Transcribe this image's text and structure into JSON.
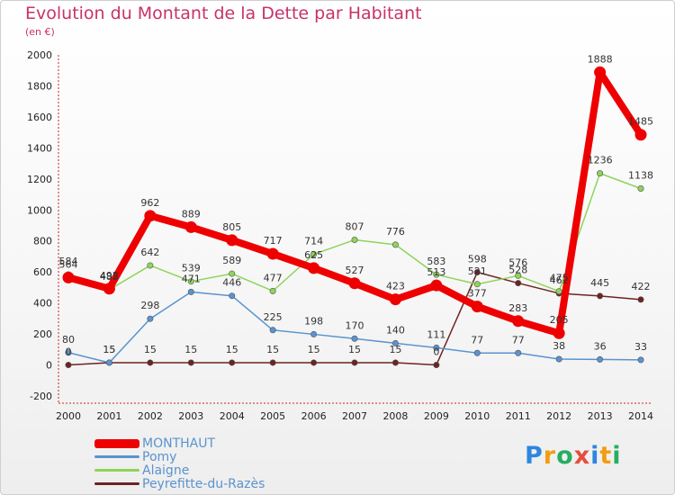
{
  "chart_data": {
    "type": "line",
    "title": "Evolution du Montant de la Dette par Habitant",
    "subtitle": "(en €)",
    "categories": [
      "2000",
      "2001",
      "2002",
      "2003",
      "2004",
      "2005",
      "2006",
      "2007",
      "2008",
      "2009",
      "2010",
      "2011",
      "2012",
      "2013",
      "2014"
    ],
    "ylim": [
      -200,
      2000
    ],
    "yticks": [
      -200,
      0,
      200,
      400,
      600,
      800,
      1000,
      1200,
      1400,
      1600,
      1800,
      2000
    ],
    "grid": false,
    "legend_position": "bottom-left",
    "series": [
      {
        "name": "MONTHAUT",
        "color": "#ee0000",
        "values": [
          564,
          492,
          962,
          889,
          805,
          717,
          625,
          527,
          423,
          513,
          377,
          283,
          205,
          1888,
          1485
        ],
        "labels": [
          "564",
          "492",
          "962",
          "889",
          "805",
          "717",
          "625",
          "527",
          "423",
          "513",
          "377",
          "283",
          "205",
          "1888",
          "1485"
        ]
      },
      {
        "name": "Pomy",
        "color": "#5a93cf",
        "values": [
          80,
          15,
          298,
          471,
          446,
          225,
          198,
          170,
          140,
          111,
          77,
          77,
          38,
          36,
          33
        ],
        "labels": [
          "80",
          "15",
          "298",
          "471",
          "446",
          "225",
          "198",
          "170",
          "140",
          "111",
          "77",
          "77",
          "38",
          "36",
          "33"
        ]
      },
      {
        "name": "Alaigne",
        "color": "#8ed45a",
        "values": [
          584,
          485,
          642,
          539,
          589,
          477,
          714,
          807,
          776,
          583,
          521,
          576,
          475,
          1236,
          1138
        ],
        "labels": [
          "584",
          "485",
          "642",
          "539",
          "589",
          "477",
          "714",
          "807",
          "776",
          "583",
          "521",
          "576",
          "475",
          "1236",
          "1138"
        ]
      },
      {
        "name": "Peyrefitte-du-Razès",
        "color": "#6e2323",
        "values": [
          0,
          15,
          15,
          15,
          15,
          15,
          15,
          15,
          15,
          0,
          598,
          528,
          462,
          445,
          422
        ],
        "labels": [
          "0",
          "15",
          "15",
          "15",
          "15",
          "15",
          "15",
          "15",
          "15",
          "0",
          "598",
          "528",
          "462",
          "445",
          "422"
        ]
      }
    ]
  },
  "legend": {
    "items": [
      {
        "label": "MONTHAUT",
        "color": "#ee0000"
      },
      {
        "label": "Pomy",
        "color": "#5a93cf"
      },
      {
        "label": "Alaigne",
        "color": "#8ed45a"
      },
      {
        "label": "Peyrefitte-du-Razès",
        "color": "#6e2323"
      }
    ]
  },
  "logo": {
    "letters": [
      "P",
      "r",
      "o",
      "x",
      "i",
      "t",
      "i"
    ],
    "colors": [
      "#2e86de",
      "#f39c12",
      "#27ae60",
      "#e74c3c",
      "#2e86de",
      "#f39c12",
      "#27ae60"
    ]
  }
}
